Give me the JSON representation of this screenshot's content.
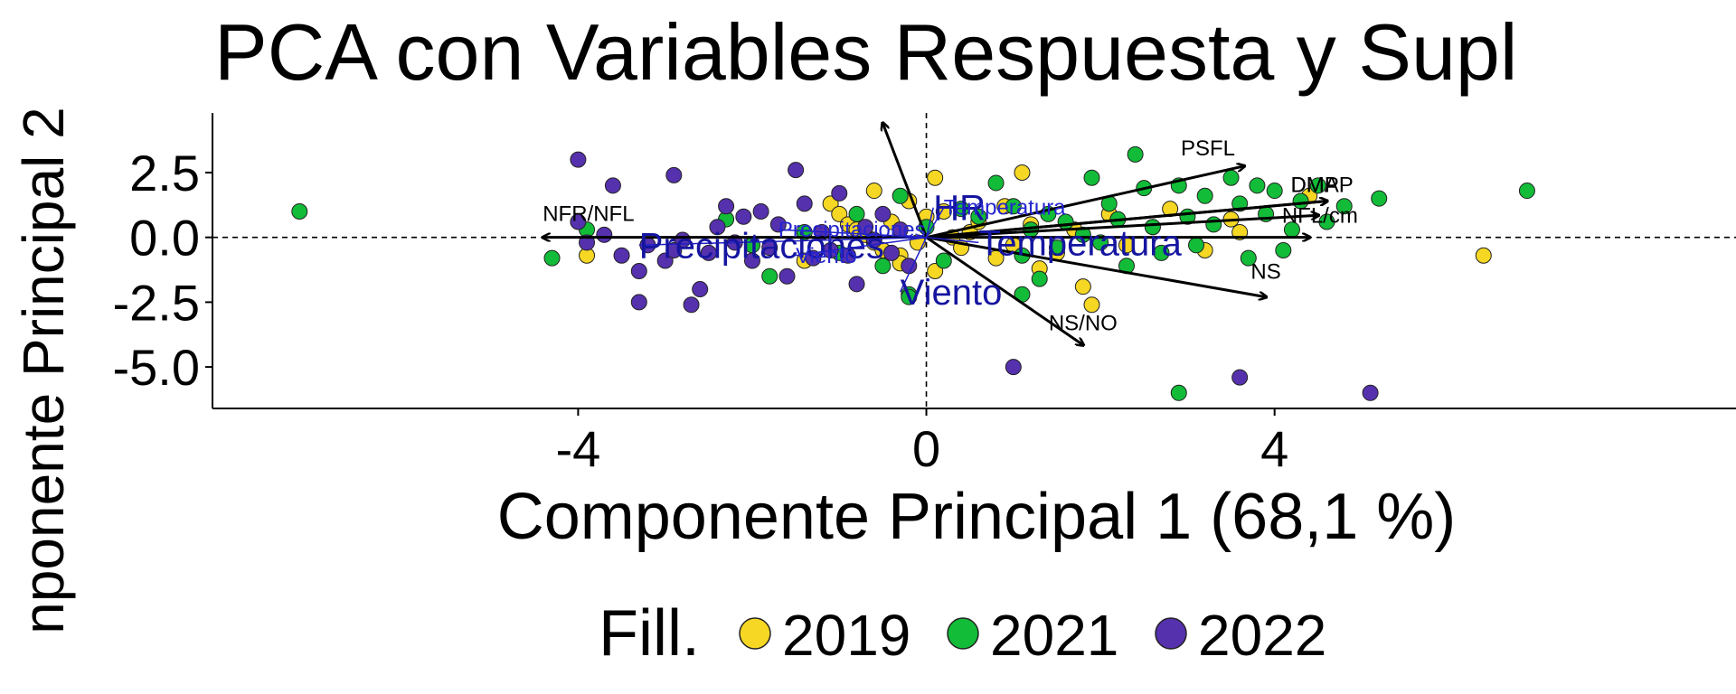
{
  "chart_data": {
    "type": "scatter",
    "title": "PCA con Variables Respuesta y Supl",
    "xlabel": "Componente Principal 1 (68,1 %)",
    "ylabel": "nponente Principal 2",
    "xlim": [
      -8.2,
      9.3
    ],
    "ylim": [
      -6.6,
      4.8
    ],
    "x_ticks": [
      -4,
      0,
      4
    ],
    "x_tick_labels": [
      "-4",
      "0",
      "4"
    ],
    "y_ticks": [
      2.5,
      0.0,
      -2.5,
      -5.0
    ],
    "y_tick_labels": [
      "2.5",
      "0.0",
      "-2.5",
      "-5.0"
    ],
    "grid": false,
    "reference_lines": {
      "x": 0,
      "y": 0,
      "style": "dashed"
    },
    "legend": {
      "title": "Fill.",
      "position": "bottom",
      "entries": [
        {
          "label": "2019",
          "color": "#F5D724"
        },
        {
          "label": "2021",
          "color": "#12BC38"
        },
        {
          "label": "2022",
          "color": "#5631AE"
        }
      ]
    },
    "series": [
      {
        "name": "2019",
        "color": "#F5D724",
        "points": [
          [
            -3.9,
            -0.7
          ],
          [
            -1.1,
            1.3
          ],
          [
            -1.0,
            0.9
          ],
          [
            -0.9,
            0.5
          ],
          [
            -0.8,
            0.3
          ],
          [
            -0.7,
            0.1
          ],
          [
            -0.6,
            -0.2
          ],
          [
            -0.5,
            -0.5
          ],
          [
            -0.4,
            0.6
          ],
          [
            -0.3,
            -0.7
          ],
          [
            -0.2,
            1.4
          ],
          [
            -0.1,
            -0.2
          ],
          [
            0.0,
            0.8
          ],
          [
            0.1,
            -1.3
          ],
          [
            0.2,
            1.0
          ],
          [
            0.3,
            0.0
          ],
          [
            0.4,
            -0.4
          ],
          [
            0.5,
            0.2
          ],
          [
            0.6,
            0.6
          ],
          [
            0.8,
            -0.8
          ],
          [
            0.9,
            1.2
          ],
          [
            1.0,
            -0.3
          ],
          [
            1.1,
            2.5
          ],
          [
            1.2,
            0.5
          ],
          [
            1.3,
            -1.2
          ],
          [
            1.5,
            -0.6
          ],
          [
            1.7,
            0.3
          ],
          [
            1.8,
            -1.9
          ],
          [
            1.9,
            -2.6
          ],
          [
            2.1,
            0.9
          ],
          [
            2.3,
            -0.3
          ],
          [
            2.6,
            0.4
          ],
          [
            2.8,
            1.1
          ],
          [
            3.2,
            -0.5
          ],
          [
            3.5,
            0.7
          ],
          [
            3.6,
            0.2
          ],
          [
            4.4,
            1.6
          ],
          [
            6.4,
            -0.7
          ],
          [
            -1.4,
            -0.9
          ],
          [
            -0.3,
            -1.0
          ],
          [
            0.1,
            2.3
          ],
          [
            -0.6,
            1.8
          ]
        ]
      },
      {
        "name": "2021",
        "color": "#12BC38",
        "points": [
          [
            -7.2,
            1.0
          ],
          [
            -4.3,
            -0.8
          ],
          [
            -3.9,
            0.3
          ],
          [
            -2.3,
            0.7
          ],
          [
            -2.0,
            -0.3
          ],
          [
            -1.8,
            -1.5
          ],
          [
            -1.4,
            0.2
          ],
          [
            -1.0,
            -0.6
          ],
          [
            -0.8,
            0.9
          ],
          [
            -0.5,
            -1.1
          ],
          [
            -0.3,
            1.6
          ],
          [
            -0.2,
            -2.2
          ],
          [
            0.0,
            0.4
          ],
          [
            0.2,
            -0.9
          ],
          [
            0.4,
            1.1
          ],
          [
            0.6,
            0.8
          ],
          [
            0.8,
            2.1
          ],
          [
            1.0,
            1.2
          ],
          [
            1.1,
            -0.7
          ],
          [
            1.2,
            0.3
          ],
          [
            1.3,
            -1.6
          ],
          [
            1.4,
            0.9
          ],
          [
            1.5,
            -0.4
          ],
          [
            1.6,
            0.6
          ],
          [
            1.8,
            0.1
          ],
          [
            1.9,
            2.3
          ],
          [
            2.0,
            -0.2
          ],
          [
            2.1,
            1.3
          ],
          [
            2.2,
            0.7
          ],
          [
            2.3,
            -1.1
          ],
          [
            2.4,
            3.2
          ],
          [
            2.5,
            1.9
          ],
          [
            2.6,
            0.4
          ],
          [
            2.7,
            -0.6
          ],
          [
            2.9,
            2.0
          ],
          [
            3.0,
            0.8
          ],
          [
            3.1,
            -0.3
          ],
          [
            3.2,
            1.6
          ],
          [
            3.3,
            0.5
          ],
          [
            3.5,
            2.3
          ],
          [
            3.6,
            1.3
          ],
          [
            3.7,
            -0.8
          ],
          [
            3.8,
            2.0
          ],
          [
            3.9,
            0.9
          ],
          [
            4.0,
            1.8
          ],
          [
            4.1,
            -0.5
          ],
          [
            4.2,
            0.3
          ],
          [
            4.3,
            1.4
          ],
          [
            4.5,
            2.0
          ],
          [
            4.6,
            0.6
          ],
          [
            4.8,
            1.2
          ],
          [
            5.2,
            1.5
          ],
          [
            6.9,
            1.8
          ],
          [
            2.9,
            -6.0
          ],
          [
            1.1,
            -2.2
          ],
          [
            -0.2,
            -2.3
          ]
        ]
      },
      {
        "name": "2022",
        "color": "#5631AE",
        "points": [
          [
            -4.0,
            3.0
          ],
          [
            -4.0,
            0.6
          ],
          [
            -3.7,
            0.1
          ],
          [
            -3.6,
            2.0
          ],
          [
            -3.5,
            -0.7
          ],
          [
            -3.3,
            -1.3
          ],
          [
            -3.3,
            -2.5
          ],
          [
            -3.2,
            -0.3
          ],
          [
            -3.0,
            -0.9
          ],
          [
            -2.9,
            2.4
          ],
          [
            -2.8,
            -0.1
          ],
          [
            -2.7,
            -2.6
          ],
          [
            -2.6,
            -2.0
          ],
          [
            -2.5,
            -0.6
          ],
          [
            -2.4,
            0.4
          ],
          [
            -2.3,
            1.2
          ],
          [
            -2.2,
            -0.2
          ],
          [
            -2.1,
            0.8
          ],
          [
            -2.0,
            -0.9
          ],
          [
            -1.8,
            -0.4
          ],
          [
            -1.7,
            0.5
          ],
          [
            -1.6,
            -1.5
          ],
          [
            -1.5,
            2.6
          ],
          [
            -1.4,
            1.3
          ],
          [
            -1.3,
            -0.8
          ],
          [
            -1.2,
            0.2
          ],
          [
            -1.1,
            -0.5
          ],
          [
            -1.0,
            1.7
          ],
          [
            -0.9,
            -0.7
          ],
          [
            -0.8,
            -1.8
          ],
          [
            -0.7,
            0.4
          ],
          [
            -0.6,
            -0.1
          ],
          [
            -0.5,
            0.9
          ],
          [
            -0.4,
            -0.6
          ],
          [
            -0.3,
            0.3
          ],
          [
            -0.2,
            -1.1
          ],
          [
            1.0,
            -5.0
          ],
          [
            3.6,
            -5.4
          ],
          [
            5.1,
            -6.0
          ],
          [
            -2.9,
            -0.5
          ],
          [
            -1.9,
            1.0
          ],
          [
            -3.9,
            -0.2
          ]
        ]
      }
    ],
    "response_loadings": [
      {
        "label": "PSFL",
        "x": 3.65,
        "y": 2.75
      },
      {
        "label": "DMAP",
        "x": 4.6,
        "y": 1.4
      },
      {
        "label": "DMP",
        "x": 4.6,
        "y": 1.4
      },
      {
        "label": "NFL/cm",
        "x": 4.5,
        "y": 0.85
      },
      {
        "label": "NS",
        "x": 3.9,
        "y": -2.3
      },
      {
        "label": "NS/NO",
        "x": 1.8,
        "y": -4.15
      },
      {
        "label": "NFR/NFL",
        "x": -4.4,
        "y": 0.0
      },
      {
        "label": "",
        "x": -0.5,
        "y": 4.4
      },
      {
        "label": "",
        "x": 4.4,
        "y": 0.0
      }
    ],
    "supplementary_variables": [
      {
        "label": "HR",
        "x": 0.08,
        "y": 1.15,
        "size": "large"
      },
      {
        "label": "Temperatura",
        "x": 0.2,
        "y": 1.15,
        "size": "small"
      },
      {
        "label": "Temperatura",
        "x": 0.6,
        "y": -0.2,
        "size": "large"
      },
      {
        "label": "Precipitaciones",
        "x": -3.3,
        "y": -0.3,
        "size": "large"
      },
      {
        "label": "Precipitaciones",
        "x": -1.7,
        "y": 0.3,
        "size": "small"
      },
      {
        "label": "Viento",
        "x": -0.3,
        "y": -2.1,
        "size": "large"
      },
      {
        "label": "Viento",
        "x": -1.5,
        "y": -0.7,
        "size": "small"
      }
    ]
  }
}
